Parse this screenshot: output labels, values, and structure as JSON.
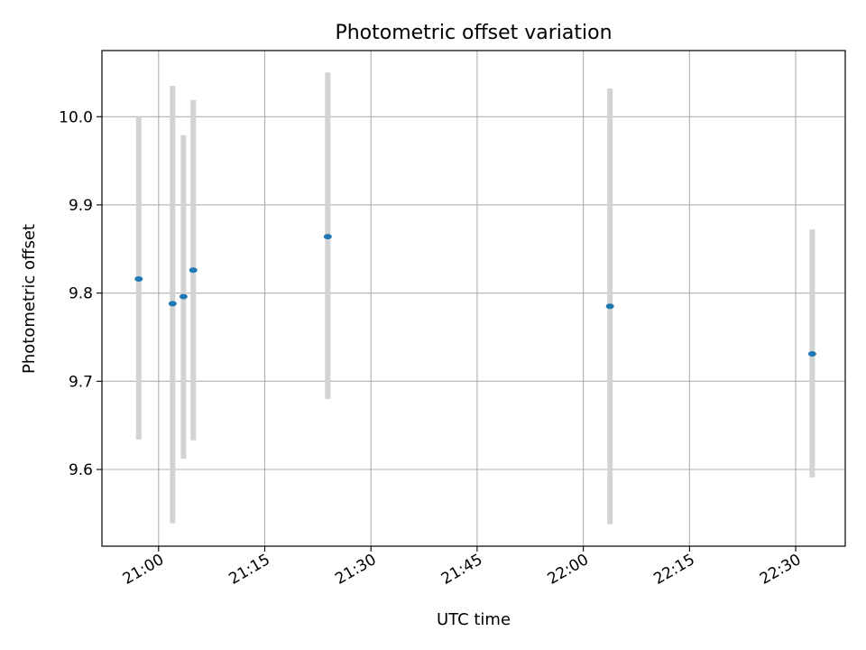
{
  "chart_data": {
    "type": "scatter",
    "title": "Photometric offset variation",
    "xlabel": "UTC time",
    "ylabel": "Photometric offset",
    "x_range": [
      "20:52",
      "22:37"
    ],
    "ylim": [
      9.513,
      10.075
    ],
    "x_ticks": [
      "21:00",
      "21:15",
      "21:30",
      "21:45",
      "22:00",
      "22:15",
      "22:30"
    ],
    "y_ticks": [
      9.6,
      9.7,
      9.8,
      9.9,
      10.0
    ],
    "y_tick_labels": [
      "9.6",
      "9.7",
      "9.8",
      "9.9",
      "10.0"
    ],
    "grid": true,
    "colors": {
      "point": "#1f77b4",
      "errorbar": "#d3d3d3",
      "grid": "#b0b0b0"
    },
    "points": [
      {
        "x": "20:57:12",
        "y": 9.816,
        "ylo": 9.634,
        "yhi": 10.0
      },
      {
        "x": "21:01:59",
        "y": 9.788,
        "ylo": 9.539,
        "yhi": 10.035
      },
      {
        "x": "21:03:31",
        "y": 9.796,
        "ylo": 9.612,
        "yhi": 9.979
      },
      {
        "x": "21:04:54",
        "y": 9.826,
        "ylo": 9.633,
        "yhi": 10.019
      },
      {
        "x": "21:23:54",
        "y": 9.864,
        "ylo": 9.68,
        "yhi": 10.05
      },
      {
        "x": "22:03:46",
        "y": 9.785,
        "ylo": 9.538,
        "yhi": 10.032
      },
      {
        "x": "22:32:20",
        "y": 9.731,
        "ylo": 9.591,
        "yhi": 9.872
      }
    ]
  }
}
